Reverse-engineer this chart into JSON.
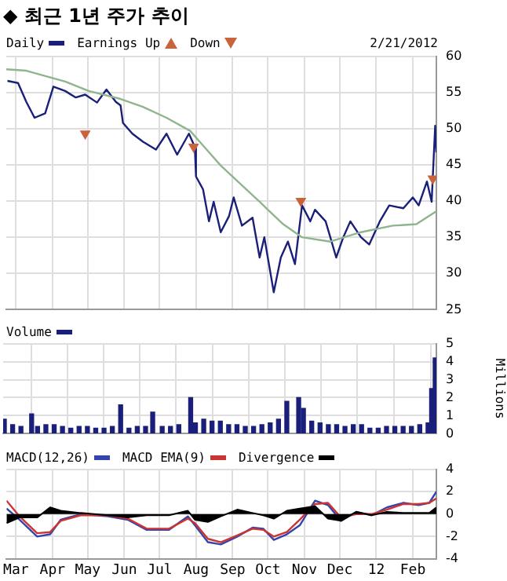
{
  "chart_data": [
    {
      "type": "line",
      "title": "◆ 최근 1년 주가 추이",
      "annotations": [
        "2/21/2012"
      ],
      "legend": "top left",
      "grid": true,
      "tick_labels": "y",
      "xlim": [
        "2011-02-21",
        "2012-02-21"
      ],
      "ylim": [
        25,
        60
      ],
      "yticks": [
        25,
        30,
        35,
        40,
        45,
        50,
        55,
        60
      ],
      "xticks": [
        {
          "value": "2011-03-01",
          "label": null
        },
        {
          "value": "2011-04-01",
          "label": null
        },
        {
          "value": "2011-05-01",
          "label": null
        },
        {
          "value": "2011-06-01",
          "label": null
        },
        {
          "value": "2011-07-01",
          "label": null
        },
        {
          "value": "2011-08-01",
          "label": null
        },
        {
          "value": "2011-09-01",
          "label": null
        },
        {
          "value": "2011-10-01",
          "label": null
        },
        {
          "value": "2011-11-01",
          "label": null
        },
        {
          "value": "2011-12-01",
          "label": null
        },
        {
          "value": "2012-01-01",
          "label": null
        },
        {
          "value": "2012-02-01",
          "label": null
        }
      ],
      "series": [
        {
          "name": "Daily",
          "color": "#1a1f7a",
          "x": [
            "2011-02-22",
            "2011-03-03",
            "2011-03-10",
            "2011-03-17",
            "2011-03-26",
            "2011-04-02",
            "2011-04-12",
            "2011-04-21",
            "2011-04-29",
            "2011-05-09",
            "2011-05-17",
            "2011-05-25",
            "2011-05-29",
            "2011-05-31",
            "2011-06-08",
            "2011-06-17",
            "2011-06-28",
            "2011-07-07",
            "2011-07-16",
            "2011-07-26",
            "2011-07-31",
            "2011-08-01",
            "2011-08-07",
            "2011-08-12",
            "2011-08-16",
            "2011-08-22",
            "2011-08-29",
            "2011-09-02",
            "2011-09-09",
            "2011-09-18",
            "2011-09-24",
            "2011-09-28",
            "2011-10-06",
            "2011-10-12",
            "2011-10-18",
            "2011-10-24",
            "2011-10-30",
            "2011-11-06",
            "2011-11-10",
            "2011-11-19",
            "2011-11-23",
            "2011-11-28",
            "2011-12-04",
            "2011-12-10",
            "2011-12-19",
            "2011-12-26",
            "2012-01-04",
            "2012-01-12",
            "2012-01-24",
            "2012-02-01",
            "2012-02-06",
            "2012-02-13",
            "2012-02-17",
            "2012-02-20",
            "2012-02-21"
          ],
          "values": [
            56.6,
            56.3,
            53.7,
            51.5,
            52.1,
            55.8,
            55.2,
            54.3,
            54.7,
            53.6,
            55.4,
            53.7,
            53.2,
            50.8,
            49.3,
            48.2,
            47.1,
            49.3,
            46.4,
            49.3,
            47.5,
            43.4,
            41.6,
            37.2,
            39.9,
            35.7,
            37.9,
            40.5,
            36.6,
            37.7,
            32.2,
            35,
            27.4,
            32.2,
            34.4,
            31.3,
            39.4,
            37.2,
            38.8,
            37.2,
            35,
            32.2,
            35,
            37.2,
            35,
            34,
            37.2,
            39.4,
            39,
            40.5,
            39.4,
            42.7,
            39.9,
            50.4,
            46.7
          ]
        },
        {
          "color": "#8fb58f",
          "x": [
            "2011-02-21",
            "2011-03-10",
            "2011-04-12",
            "2011-05-02",
            "2011-05-29",
            "2011-06-17",
            "2011-07-07",
            "2011-07-27",
            "2011-08-22",
            "2011-09-24",
            "2011-10-01",
            "2011-10-14",
            "2011-10-30",
            "2011-11-23",
            "2011-12-19",
            "2012-01-15",
            "2012-02-04",
            "2012-02-21"
          ],
          "values": [
            58.2,
            58,
            56.5,
            55.2,
            54.1,
            53,
            51.5,
            49.7,
            44.9,
            39.9,
            38.8,
            36.8,
            35,
            34.4,
            35.7,
            36.6,
            36.8,
            38.6
          ]
        },
        {
          "name": "Earnings Up",
          "type": "scatter",
          "marker": "triangle",
          "color": "#c8643c"
        },
        {
          "name": "Down",
          "type": "scatter",
          "marker": "triangle",
          "color": "#c8643c",
          "x": [
            "2011-04-29",
            "2011-07-30",
            "2011-10-29",
            "2012-02-18"
          ],
          "values": [
            49.3,
            47.5,
            40,
            43.1
          ]
        }
      ]
    },
    {
      "type": "bar",
      "ylabel": "Millions",
      "legend": "top left",
      "grid": true,
      "tick_labels": "y",
      "xlim": [
        "2011-02-21",
        "2012-02-21"
      ],
      "ylim": [
        0,
        5
      ],
      "yticks": [
        0,
        1,
        2,
        3,
        4,
        5
      ],
      "xticks": [
        {
          "value": "2011-03-01",
          "label": null
        },
        {
          "value": "2011-04-01",
          "label": null
        },
        {
          "value": "2011-05-01",
          "label": null
        },
        {
          "value": "2011-06-01",
          "label": null
        },
        {
          "value": "2011-07-01",
          "label": null
        },
        {
          "value": "2011-08-01",
          "label": null
        },
        {
          "value": "2011-09-01",
          "label": null
        },
        {
          "value": "2011-10-01",
          "label": null
        },
        {
          "value": "2011-11-01",
          "label": null
        },
        {
          "value": "2011-12-01",
          "label": null
        },
        {
          "value": "2012-01-01",
          "label": null
        },
        {
          "value": "2012-02-01",
          "label": null
        }
      ],
      "series": [
        {
          "name": "Volume",
          "color": "#1a1f7a",
          "x": [
            "2011-02-22",
            "2011-03-01",
            "2011-03-08",
            "2011-03-17",
            "2011-03-22",
            "2011-03-29",
            "2011-04-05",
            "2011-04-12",
            "2011-04-19",
            "2011-04-26",
            "2011-05-03",
            "2011-05-10",
            "2011-05-17",
            "2011-05-24",
            "2011-05-31",
            "2011-06-07",
            "2011-06-14",
            "2011-06-21",
            "2011-06-27",
            "2011-07-05",
            "2011-07-12",
            "2011-07-19",
            "2011-07-29",
            "2011-08-02",
            "2011-08-09",
            "2011-08-16",
            "2011-08-23",
            "2011-08-30",
            "2011-09-06",
            "2011-09-13",
            "2011-09-20",
            "2011-09-27",
            "2011-10-04",
            "2011-10-11",
            "2011-10-18",
            "2011-10-28",
            "2011-11-01",
            "2011-11-08",
            "2011-11-15",
            "2011-11-22",
            "2011-11-29",
            "2011-12-06",
            "2011-12-13",
            "2011-12-20",
            "2011-12-27",
            "2012-01-03",
            "2012-01-10",
            "2012-01-17",
            "2012-01-24",
            "2012-01-31",
            "2012-02-07",
            "2012-02-14",
            "2012-02-17",
            "2012-02-20"
          ],
          "values": [
            0.8,
            0.5,
            0.4,
            1.1,
            0.4,
            0.5,
            0.5,
            0.4,
            0.3,
            0.4,
            0.4,
            0.3,
            0.3,
            0.4,
            1.6,
            0.3,
            0.4,
            0.4,
            1.2,
            0.4,
            0.4,
            0.5,
            2.0,
            0.6,
            0.8,
            0.7,
            0.7,
            0.5,
            0.5,
            0.4,
            0.4,
            0.5,
            0.6,
            0.8,
            1.8,
            2.0,
            1.4,
            0.7,
            0.6,
            0.5,
            0.5,
            0.4,
            0.5,
            0.5,
            0.3,
            0.3,
            0.4,
            0.4,
            0.4,
            0.4,
            0.5,
            0.6,
            2.5,
            4.2
          ]
        }
      ]
    },
    {
      "type": "line",
      "legend": "top left",
      "grid": true,
      "xlim": [
        "2011-02-21",
        "2012-02-21"
      ],
      "ylim": [
        -4,
        4
      ],
      "yticks": [
        -4,
        -2,
        0,
        2,
        4
      ],
      "xticks": [
        {
          "value": "2011-03-01",
          "label": "Mar"
        },
        {
          "value": "2011-04-01",
          "label": "Apr"
        },
        {
          "value": "2011-05-01",
          "label": "May"
        },
        {
          "value": "2011-06-01",
          "label": "Jun"
        },
        {
          "value": "2011-07-01",
          "label": "Jul"
        },
        {
          "value": "2011-08-01",
          "label": "Aug"
        },
        {
          "value": "2011-09-01",
          "label": "Sep"
        },
        {
          "value": "2011-10-01",
          "label": "Oct"
        },
        {
          "value": "2011-11-01",
          "label": "Nov"
        },
        {
          "value": "2011-12-01",
          "label": "Dec"
        },
        {
          "value": "2012-01-01",
          "label": "12"
        },
        {
          "value": "2012-02-01",
          "label": "Feb"
        }
      ],
      "x": [
        "2011-02-21",
        "2011-03-04",
        "2011-03-19",
        "2011-03-30",
        "2011-04-08",
        "2011-04-25",
        "2011-05-18",
        "2011-06-04",
        "2011-06-20",
        "2011-07-09",
        "2011-07-25",
        "2011-07-31",
        "2011-08-11",
        "2011-08-22",
        "2011-09-05",
        "2011-09-18",
        "2011-09-27",
        "2011-10-06",
        "2011-10-17",
        "2011-10-28",
        "2011-11-10",
        "2011-11-21",
        "2011-12-02",
        "2011-12-15",
        "2011-12-28",
        "2012-01-10",
        "2012-01-24",
        "2012-02-06",
        "2012-02-15",
        "2012-02-21"
      ],
      "series": [
        {
          "name": "MACD(12,26)",
          "color": "#3344aa",
          "values": [
            0.5,
            -0.5,
            -2.0,
            -1.8,
            -0.5,
            0,
            -0.2,
            -0.5,
            -1.4,
            -1.4,
            -0.2,
            -1.0,
            -2.5,
            -2.7,
            -2.0,
            -1.2,
            -1.3,
            -2.3,
            -1.8,
            -1.0,
            1.2,
            0.8,
            -0.6,
            0.2,
            -0.1,
            0.6,
            1.0,
            0.8,
            1.0,
            2.0
          ]
        },
        {
          "name": "MACD EMA(9)",
          "color": "#cc3333",
          "values": [
            1.2,
            -0.2,
            -1.7,
            -1.6,
            -0.6,
            -0.1,
            -0.1,
            -0.4,
            -1.3,
            -1.3,
            -0.4,
            -0.8,
            -2.2,
            -2.5,
            -1.9,
            -1.3,
            -1.4,
            -2.0,
            -1.6,
            -0.5,
            0.9,
            1.0,
            -0.3,
            0.0,
            0.0,
            0.4,
            0.9,
            0.9,
            1.0,
            1.4
          ]
        },
        {
          "name": "Divergence",
          "type": "area",
          "color": "#000000",
          "values": [
            -0.8,
            -0.3,
            -0.3,
            0.6,
            0.3,
            0.1,
            -0.1,
            -0.3,
            -0.1,
            -0.1,
            0.3,
            -0.5,
            -0.7,
            -0.2,
            0.4,
            0.1,
            -0.1,
            -0.4,
            0.3,
            0.5,
            0.7,
            -0.4,
            -0.6,
            0.2,
            -0.1,
            0.2,
            0.1,
            0.1,
            0.1,
            0.6
          ]
        }
      ]
    }
  ]
}
